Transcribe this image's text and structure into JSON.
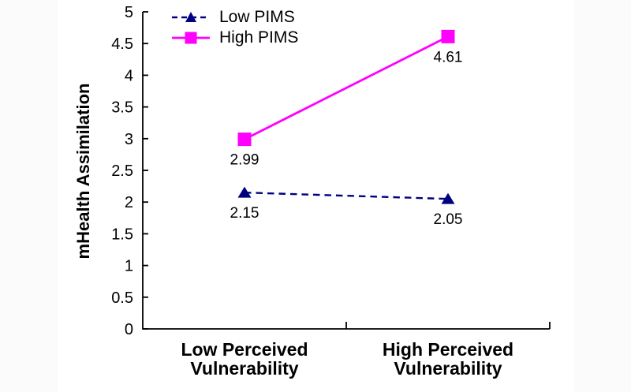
{
  "page": {
    "background": "#FBFBFB",
    "chart_background": "#FFFFFF",
    "axis_color": "#000000",
    "text_color": "#000000"
  },
  "chart_data": {
    "type": "line",
    "title": "",
    "xlabel": "",
    "ylabel": "mHealth Assimilation",
    "categories": [
      "Low Perceived Vulnerability",
      "High Perceived Vulnerability"
    ],
    "category_lines": [
      [
        "Low Perceived",
        "Vulnerability"
      ],
      [
        "High Perceived",
        "Vulnerability"
      ]
    ],
    "ylim": [
      0,
      5
    ],
    "ytick_step": 0.5,
    "yticks": [
      {
        "value": 0,
        "label": "0"
      },
      {
        "value": 0.5,
        "label": "0.5"
      },
      {
        "value": 1,
        "label": "1"
      },
      {
        "value": 1.5,
        "label": "1.5"
      },
      {
        "value": 2,
        "label": "2"
      },
      {
        "value": 2.5,
        "label": "2.5"
      },
      {
        "value": 3,
        "label": "3"
      },
      {
        "value": 3.5,
        "label": "3.5"
      },
      {
        "value": 4,
        "label": "4"
      },
      {
        "value": 4.5,
        "label": "4.5"
      },
      {
        "value": 5,
        "label": "5"
      }
    ],
    "grid": false,
    "legend_position": "top-left-inside",
    "series": [
      {
        "name": "Low PIMS",
        "color": "#000080",
        "line_style": "dashed",
        "marker": "triangle",
        "values": [
          2.15,
          2.05
        ],
        "point_labels": [
          "2.15",
          "2.05"
        ]
      },
      {
        "name": "High PIMS",
        "color": "#FF00FF",
        "line_style": "solid",
        "marker": "square",
        "values": [
          2.99,
          4.61
        ],
        "point_labels": [
          "2.99",
          "4.61"
        ]
      }
    ]
  }
}
